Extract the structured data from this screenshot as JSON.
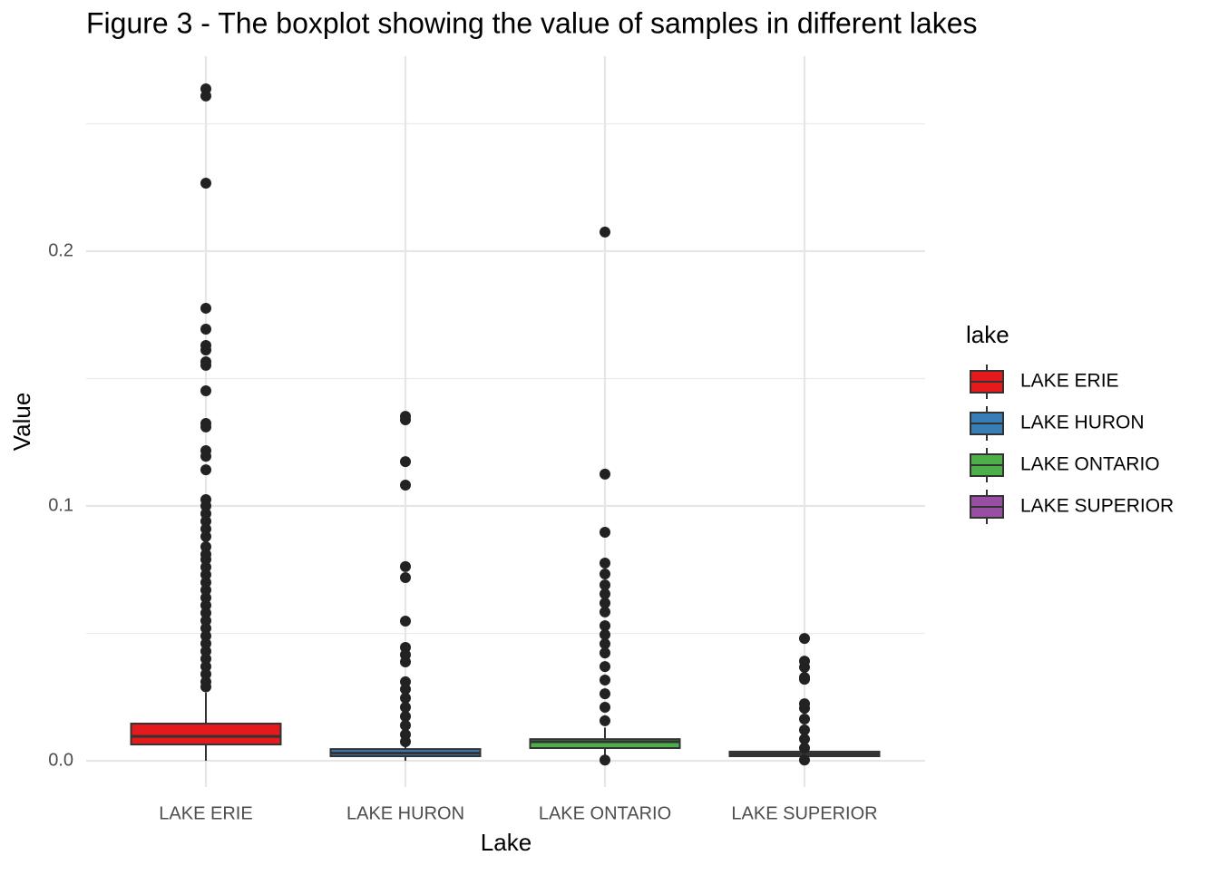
{
  "chart_data": {
    "type": "box",
    "title": "Figure 3 - The boxplot showing the value of samples in different lakes",
    "x_label": "Lake",
    "y_label": "Value",
    "legend_title": "lake",
    "categories": [
      "LAKE ERIE",
      "LAKE HURON",
      "LAKE ONTARIO",
      "LAKE SUPERIOR"
    ],
    "ylim": [
      -0.0103,
      0.2765
    ],
    "yticks": [
      {
        "value": 0,
        "label": "0.0"
      },
      0.1,
      0.2
    ],
    "minor_yticks": [
      0.05,
      0.15,
      0.25
    ],
    "grid": true,
    "series": [
      {
        "name": "LAKE ERIE",
        "color": "#e41a1c",
        "min": 0.0,
        "q1": 0.0064,
        "median": 0.0096,
        "q3": 0.0146,
        "max": 0.0268,
        "outliers": [
          0.2637,
          0.2609,
          0.2267,
          0.1776,
          0.1694,
          0.163,
          0.1612,
          0.1566,
          0.1552,
          0.1452,
          0.1324,
          0.131,
          0.1217,
          0.1195,
          0.1142,
          0.1025,
          0.1,
          0.097,
          0.094,
          0.091,
          0.088,
          0.084,
          0.081,
          0.079,
          0.076,
          0.073,
          0.07,
          0.067,
          0.064,
          0.061,
          0.058,
          0.055,
          0.052,
          0.049,
          0.046,
          0.043,
          0.04,
          0.037,
          0.034,
          0.031,
          0.029
        ]
      },
      {
        "name": "LAKE HURON",
        "color": "#377eb8",
        "min": 0.0,
        "q1": 0.0018,
        "median": 0.003,
        "q3": 0.0046,
        "max": 0.0065,
        "outliers": [
          0.1352,
          0.1338,
          0.1174,
          0.1082,
          0.0762,
          0.0719,
          0.0548,
          0.0445,
          0.0416,
          0.0388,
          0.031,
          0.0281,
          0.0246,
          0.021,
          0.0174,
          0.0139,
          0.0103,
          0.0075
        ]
      },
      {
        "name": "LAKE ONTARIO",
        "color": "#4daf4a",
        "min": 0.0013,
        "q1": 0.005,
        "median": 0.0075,
        "q3": 0.0085,
        "max": 0.013,
        "outliers": [
          0.2075,
          0.1125,
          0.0897,
          0.0776,
          0.0733,
          0.069,
          0.0655,
          0.0619,
          0.0584,
          0.053,
          0.0495,
          0.0459,
          0.0423,
          0.037,
          0.0317,
          0.0263,
          0.021,
          0.0157,
          0.0003
        ]
      },
      {
        "name": "LAKE SUPERIOR",
        "color": "#984ea3",
        "min": 0.001,
        "q1": 0.0018,
        "median": 0.0027,
        "q3": 0.0036,
        "max": 0.0053,
        "outliers": [
          0.048,
          0.0391,
          0.0367,
          0.0327,
          0.032,
          0.0224,
          0.0206,
          0.0164,
          0.0121,
          0.0085,
          0.005,
          0.0003
        ]
      }
    ]
  }
}
